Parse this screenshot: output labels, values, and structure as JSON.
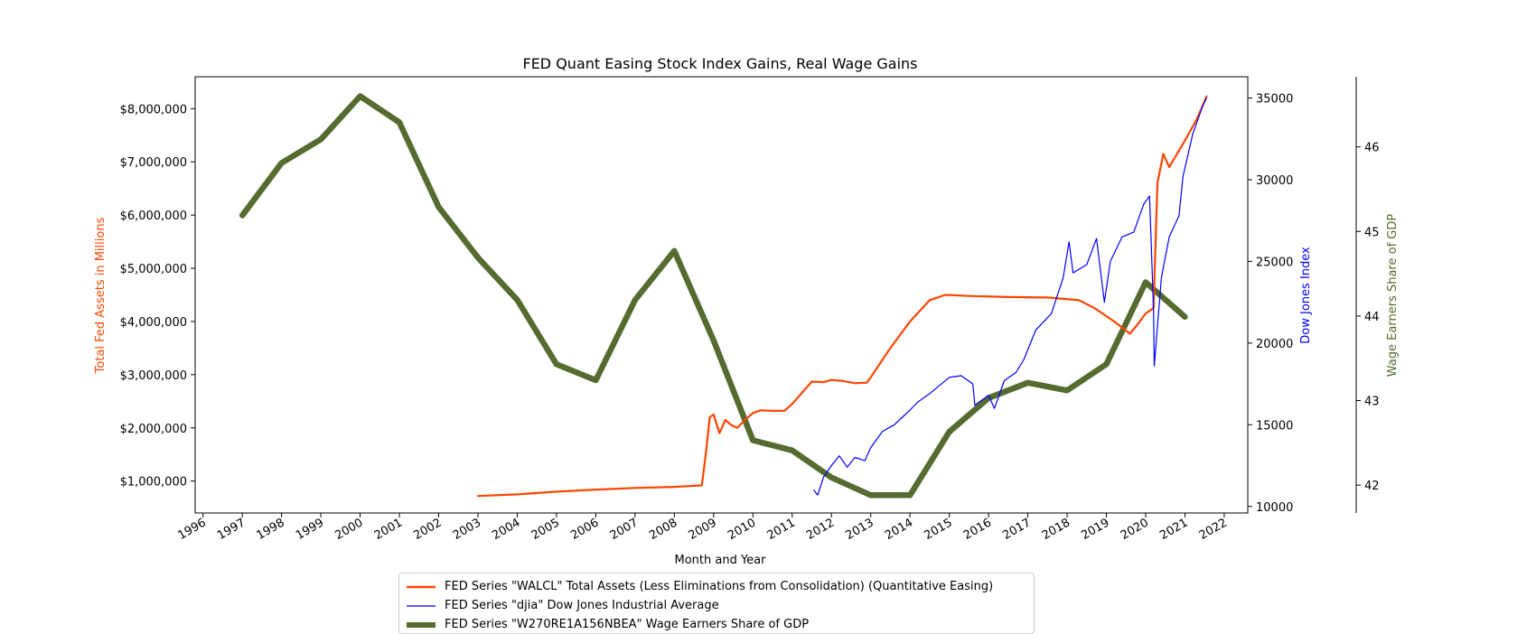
{
  "chart_data": {
    "type": "line",
    "title": "FED Quant Easing Stock Index Gains, Real Wage Gains",
    "xlabel": "Month and Year",
    "x_ticks": [
      "1996",
      "1997",
      "1998",
      "1999",
      "2000",
      "2001",
      "2002",
      "2003",
      "2004",
      "2005",
      "2006",
      "2007",
      "2008",
      "2009",
      "2010",
      "2011",
      "2012",
      "2013",
      "2014",
      "2015",
      "2016",
      "2017",
      "2018",
      "2019",
      "2020",
      "2021",
      "2022"
    ],
    "xlim": [
      1995.8,
      2022.6
    ],
    "axes": {
      "left": {
        "label": "Total Fed Assets in Millions",
        "color": "#ff4500",
        "ylim": [
          400000,
          8600000
        ],
        "ticks": [
          1000000,
          2000000,
          3000000,
          4000000,
          5000000,
          6000000,
          7000000,
          8000000
        ],
        "tick_labels": [
          "$1,000,000",
          "$2,000,000",
          "$3,000,000",
          "$4,000,000",
          "$5,000,000",
          "$6,000,000",
          "$7,000,000",
          "$8,000,000"
        ]
      },
      "right1": {
        "label": "Dow Jones Index",
        "color": "#0000ff",
        "ylim": [
          9600,
          36300
        ],
        "ticks": [
          10000,
          15000,
          20000,
          25000,
          30000,
          35000
        ],
        "tick_labels": [
          "10000",
          "15000",
          "20000",
          "25000",
          "30000",
          "35000"
        ]
      },
      "right2": {
        "label": "Wage Earners Share of GDP",
        "color": "#556b2f",
        "ylim": [
          41.67,
          46.83
        ],
        "ticks": [
          42,
          43,
          44,
          45,
          46
        ],
        "tick_labels": [
          "42",
          "43",
          "44",
          "45",
          "46"
        ]
      }
    },
    "series": [
      {
        "name": "FED Series \"WALCL\" Total Assets (Less Eliminations from Consolidation) (Quantitative Easing)",
        "axis": "left",
        "color": "#ff4500",
        "points": [
          [
            2003.0,
            720000
          ],
          [
            2004.0,
            750000
          ],
          [
            2005.0,
            800000
          ],
          [
            2006.0,
            840000
          ],
          [
            2007.0,
            870000
          ],
          [
            2008.0,
            890000
          ],
          [
            2008.7,
            920000
          ],
          [
            2008.8,
            1500000
          ],
          [
            2008.9,
            2200000
          ],
          [
            2009.0,
            2250000
          ],
          [
            2009.15,
            1900000
          ],
          [
            2009.3,
            2150000
          ],
          [
            2009.45,
            2050000
          ],
          [
            2009.6,
            2000000
          ],
          [
            2009.8,
            2150000
          ],
          [
            2010.0,
            2280000
          ],
          [
            2010.2,
            2330000
          ],
          [
            2010.5,
            2320000
          ],
          [
            2010.8,
            2320000
          ],
          [
            2011.0,
            2450000
          ],
          [
            2011.3,
            2700000
          ],
          [
            2011.5,
            2870000
          ],
          [
            2011.8,
            2860000
          ],
          [
            2012.0,
            2900000
          ],
          [
            2012.3,
            2880000
          ],
          [
            2012.6,
            2840000
          ],
          [
            2012.9,
            2850000
          ],
          [
            2013.0,
            2950000
          ],
          [
            2013.5,
            3500000
          ],
          [
            2014.0,
            4000000
          ],
          [
            2014.5,
            4400000
          ],
          [
            2014.9,
            4500000
          ],
          [
            2015.5,
            4480000
          ],
          [
            2016.5,
            4460000
          ],
          [
            2017.5,
            4450000
          ],
          [
            2018.3,
            4400000
          ],
          [
            2018.7,
            4250000
          ],
          [
            2019.2,
            4000000
          ],
          [
            2019.6,
            3770000
          ],
          [
            2019.8,
            3950000
          ],
          [
            2020.0,
            4150000
          ],
          [
            2020.2,
            4250000
          ],
          [
            2020.3,
            6600000
          ],
          [
            2020.45,
            7150000
          ],
          [
            2020.6,
            6900000
          ],
          [
            2021.0,
            7400000
          ],
          [
            2021.3,
            7800000
          ],
          [
            2021.55,
            8230000
          ]
        ]
      },
      {
        "name": "FED Series \"djia\" Dow Jones Industrial Average",
        "axis": "right1",
        "color": "#0000ff",
        "points": [
          [
            2011.55,
            11000
          ],
          [
            2011.65,
            10700
          ],
          [
            2011.8,
            11800
          ],
          [
            2012.0,
            12500
          ],
          [
            2012.2,
            13100
          ],
          [
            2012.4,
            12400
          ],
          [
            2012.6,
            13000
          ],
          [
            2012.85,
            12800
          ],
          [
            2013.0,
            13600
          ],
          [
            2013.3,
            14600
          ],
          [
            2013.6,
            15000
          ],
          [
            2014.0,
            15900
          ],
          [
            2014.2,
            16400
          ],
          [
            2014.5,
            16900
          ],
          [
            2014.8,
            17500
          ],
          [
            2015.0,
            17900
          ],
          [
            2015.3,
            18000
          ],
          [
            2015.6,
            17500
          ],
          [
            2015.65,
            16200
          ],
          [
            2016.0,
            16800
          ],
          [
            2016.15,
            16000
          ],
          [
            2016.4,
            17700
          ],
          [
            2016.7,
            18200
          ],
          [
            2016.9,
            19000
          ],
          [
            2017.2,
            20800
          ],
          [
            2017.6,
            21800
          ],
          [
            2017.9,
            24000
          ],
          [
            2018.05,
            26200
          ],
          [
            2018.15,
            24300
          ],
          [
            2018.5,
            24800
          ],
          [
            2018.75,
            26400
          ],
          [
            2018.95,
            22500
          ],
          [
            2019.1,
            25000
          ],
          [
            2019.4,
            26500
          ],
          [
            2019.7,
            26800
          ],
          [
            2019.95,
            28500
          ],
          [
            2020.1,
            29000
          ],
          [
            2020.2,
            22000
          ],
          [
            2020.22,
            18600
          ],
          [
            2020.4,
            24000
          ],
          [
            2020.6,
            26500
          ],
          [
            2020.85,
            27800
          ],
          [
            2020.95,
            30200
          ],
          [
            2021.2,
            32800
          ],
          [
            2021.45,
            34500
          ],
          [
            2021.55,
            35000
          ]
        ]
      },
      {
        "name": "FED Series \"W270RE1A156NBEA\" Wage Earners Share of GDP",
        "axis": "right2",
        "color": "#556b2f",
        "points": [
          [
            1997,
            45.19
          ],
          [
            1998,
            45.81
          ],
          [
            1999,
            46.09
          ],
          [
            2000,
            46.6
          ],
          [
            2001,
            46.29
          ],
          [
            2002,
            45.29
          ],
          [
            2003,
            44.69
          ],
          [
            2004,
            44.19
          ],
          [
            2005,
            43.43
          ],
          [
            2006,
            43.24
          ],
          [
            2007,
            44.19
          ],
          [
            2008,
            44.77
          ],
          [
            2009,
            43.71
          ],
          [
            2010,
            42.53
          ],
          [
            2011,
            42.41
          ],
          [
            2012,
            42.09
          ],
          [
            2013,
            41.88
          ],
          [
            2014,
            41.88
          ],
          [
            2015,
            42.63
          ],
          [
            2016,
            43.03
          ],
          [
            2017,
            43.21
          ],
          [
            2018,
            43.12
          ],
          [
            2019,
            43.43
          ],
          [
            2020,
            44.4
          ],
          [
            2021,
            43.99
          ]
        ]
      }
    ]
  }
}
